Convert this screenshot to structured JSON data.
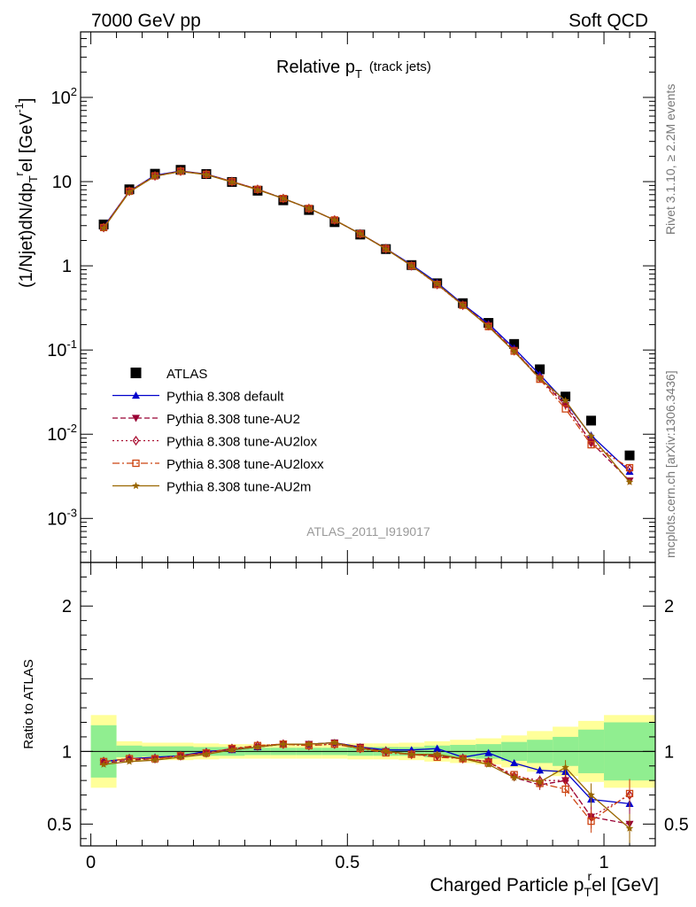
{
  "header": {
    "left": "7000 GeV pp",
    "right": "Soft QCD"
  },
  "side_labels": {
    "rivet": "Rivet 3.1.10, ≥ 2.2M events",
    "mcplots": "mcplots.cern.ch [arXiv:1306.3436]"
  },
  "analysis_id": "ATLAS_2011_I919017",
  "colors": {
    "data": "#000000",
    "default": "#0000cc",
    "au2": "#990033",
    "au2lox": "#aa1133",
    "au2loxx": "#cc4411",
    "au2m": "#996600",
    "band_inner": "#90ee90",
    "band_outer": "#ffff99"
  },
  "chart_data": [
    {
      "type": "scatter",
      "panel": "main",
      "title_main": "Relative p",
      "title_sub": "T",
      "title_suffix": "(track jets)",
      "ylabel": "(1/Njet)dN/dp",
      "ylabel_sub": "T",
      "ylabel_sup": "r",
      "ylabel_rest": "el [GeV",
      "ylabel_unit_sup": "-1",
      "ylabel_close": "]",
      "yscale": "log",
      "ylim": [
        0.0003,
        600
      ],
      "xlim": [
        -0.02,
        1.1
      ],
      "y_ticks": [
        {
          "value": 0.001,
          "base": "10",
          "exp": "-3"
        },
        {
          "value": 0.01,
          "base": "10",
          "exp": "-2"
        },
        {
          "value": 0.1,
          "base": "10",
          "exp": "-1"
        },
        {
          "value": 1,
          "base": "1",
          "exp": ""
        },
        {
          "value": 10,
          "base": "10",
          "exp": ""
        },
        {
          "value": 100,
          "base": "10",
          "exp": "2"
        }
      ],
      "x": [
        0.025,
        0.075,
        0.125,
        0.175,
        0.225,
        0.275,
        0.325,
        0.375,
        0.425,
        0.475,
        0.525,
        0.575,
        0.625,
        0.675,
        0.725,
        0.775,
        0.825,
        0.875,
        0.925,
        0.975,
        1.05
      ],
      "legend_position": "lower-left",
      "series": [
        {
          "name": "ATLAS",
          "key": "data",
          "marker": "square",
          "dash": "none",
          "values": [
            3.1,
            8.1,
            12.4,
            13.8,
            12.3,
            9.9,
            7.8,
            6.0,
            4.6,
            3.3,
            2.35,
            1.58,
            1.02,
            0.62,
            0.36,
            0.21,
            0.118,
            0.059,
            0.028,
            0.0145,
            0.0056
          ]
        },
        {
          "name": "Pythia 8.308 default",
          "key": "default",
          "marker": "triangle-up",
          "dash": "solid",
          "values": [
            2.9,
            7.7,
            11.9,
            13.4,
            12.3,
            10.0,
            8.1,
            6.3,
            4.8,
            3.5,
            2.4,
            1.6,
            1.03,
            0.63,
            0.35,
            0.205,
            0.105,
            0.051,
            0.024,
            0.0097,
            0.0036
          ]
        },
        {
          "name": "Pythia 8.308 tune-AU2",
          "key": "au2",
          "marker": "triangle-down",
          "dash": "6,3",
          "values": [
            2.85,
            7.6,
            11.6,
            13.2,
            12.2,
            10.0,
            8.1,
            6.3,
            4.8,
            3.5,
            2.4,
            1.59,
            1.0,
            0.61,
            0.345,
            0.195,
            0.1,
            0.046,
            0.022,
            0.008,
            0.0028
          ]
        },
        {
          "name": "Pythia 8.308 tune-AU2lox",
          "key": "au2lox",
          "marker": "diamond-open",
          "dash": "2,3",
          "values": [
            2.85,
            7.7,
            11.7,
            13.3,
            12.2,
            10.0,
            8.1,
            6.3,
            4.8,
            3.5,
            2.4,
            1.6,
            1.0,
            0.6,
            0.34,
            0.195,
            0.098,
            0.047,
            0.023,
            0.008,
            0.0039
          ]
        },
        {
          "name": "Pythia 8.308 tune-AU2loxx",
          "key": "au2loxx",
          "marker": "square-open",
          "dash": "8,3,2,3",
          "values": [
            2.85,
            7.7,
            11.7,
            13.3,
            12.2,
            10.0,
            8.1,
            6.3,
            4.8,
            3.5,
            2.4,
            1.6,
            1.0,
            0.6,
            0.34,
            0.19,
            0.097,
            0.045,
            0.02,
            0.0075,
            0.004
          ]
        },
        {
          "name": "Pythia 8.308 tune-AU2m",
          "key": "au2m",
          "marker": "star",
          "dash": "solid",
          "values": [
            2.8,
            7.5,
            11.6,
            13.2,
            12.1,
            9.9,
            8.0,
            6.3,
            4.8,
            3.5,
            2.4,
            1.58,
            1.0,
            0.61,
            0.34,
            0.19,
            0.096,
            0.046,
            0.025,
            0.0095,
            0.0027
          ]
        }
      ]
    },
    {
      "type": "line",
      "panel": "ratio",
      "ylabel": "Ratio to ATLAS",
      "xlabel": "Charged Particle p",
      "xlabel_sub": "T",
      "xlabel_sup": "r",
      "xlabel_rest": "el [GeV]",
      "ylim": [
        0.35,
        2.3
      ],
      "xlim": [
        -0.02,
        1.1
      ],
      "x_ticks": [
        {
          "value": 0,
          "label": "0"
        },
        {
          "value": 0.5,
          "label": "0.5"
        },
        {
          "value": 1,
          "label": "1"
        }
      ],
      "y_ticks": [
        {
          "value": 0.5,
          "label": "0.5"
        },
        {
          "value": 1,
          "label": "1"
        },
        {
          "value": 2,
          "label": "2"
        }
      ],
      "reference_line": 1,
      "bins": [
        0,
        0.05,
        0.1,
        0.15,
        0.2,
        0.25,
        0.3,
        0.35,
        0.4,
        0.45,
        0.5,
        0.55,
        0.6,
        0.65,
        0.7,
        0.75,
        0.8,
        0.85,
        0.9,
        0.95,
        1.0,
        1.1
      ],
      "band_inner": [
        0.18,
        0.04,
        0.035,
        0.035,
        0.03,
        0.03,
        0.025,
        0.025,
        0.025,
        0.025,
        0.03,
        0.03,
        0.03,
        0.04,
        0.045,
        0.05,
        0.065,
        0.08,
        0.1,
        0.15,
        0.2
      ],
      "band_outer": [
        0.25,
        0.07,
        0.06,
        0.06,
        0.055,
        0.05,
        0.05,
        0.05,
        0.05,
        0.05,
        0.055,
        0.055,
        0.06,
        0.07,
        0.08,
        0.09,
        0.11,
        0.14,
        0.17,
        0.21,
        0.25
      ],
      "x": [
        0.025,
        0.075,
        0.125,
        0.175,
        0.225,
        0.275,
        0.325,
        0.375,
        0.425,
        0.475,
        0.525,
        0.575,
        0.625,
        0.675,
        0.725,
        0.775,
        0.825,
        0.875,
        0.925,
        0.975,
        1.05
      ],
      "series": [
        {
          "name": "Pythia 8.308 default",
          "key": "default",
          "marker": "triangle-up",
          "dash": "solid",
          "values": [
            0.93,
            0.95,
            0.96,
            0.97,
            1.0,
            1.01,
            1.03,
            1.05,
            1.05,
            1.06,
            1.03,
            1.01,
            1.01,
            1.02,
            0.96,
            0.99,
            0.92,
            0.87,
            0.86,
            0.67,
            0.64
          ],
          "errors": [
            0.005,
            0.005,
            0.005,
            0.005,
            0.005,
            0.005,
            0.005,
            0.005,
            0.005,
            0.005,
            0.006,
            0.006,
            0.008,
            0.01,
            0.012,
            0.015,
            0.02,
            0.025,
            0.03,
            0.04,
            0.05
          ]
        },
        {
          "name": "Pythia 8.308 tune-AU2",
          "key": "au2",
          "marker": "triangle-down",
          "dash": "6,3",
          "values": [
            0.92,
            0.94,
            0.95,
            0.97,
            0.99,
            1.02,
            1.03,
            1.05,
            1.05,
            1.06,
            1.03,
            1.0,
            0.98,
            0.97,
            0.95,
            0.93,
            0.82,
            0.77,
            0.8,
            0.55,
            0.5
          ],
          "errors": [
            0.005,
            0.005,
            0.005,
            0.005,
            0.005,
            0.005,
            0.005,
            0.005,
            0.005,
            0.006,
            0.006,
            0.007,
            0.009,
            0.011,
            0.015,
            0.018,
            0.025,
            0.035,
            0.05,
            0.08,
            0.1
          ]
        },
        {
          "name": "Pythia 8.308 tune-AU2lox",
          "key": "au2lox",
          "marker": "diamond-open",
          "dash": "2,3",
          "values": [
            0.93,
            0.95,
            0.95,
            0.97,
            0.99,
            1.02,
            1.04,
            1.05,
            1.04,
            1.05,
            1.02,
            1.0,
            0.98,
            0.97,
            0.95,
            0.93,
            0.83,
            0.8,
            0.8,
            0.55,
            0.7
          ],
          "errors": [
            0.005,
            0.005,
            0.005,
            0.005,
            0.005,
            0.005,
            0.005,
            0.005,
            0.005,
            0.006,
            0.006,
            0.007,
            0.009,
            0.011,
            0.015,
            0.018,
            0.025,
            0.035,
            0.05,
            0.08,
            0.1
          ]
        },
        {
          "name": "Pythia 8.308 tune-AU2loxx",
          "key": "au2loxx",
          "marker": "square-open",
          "dash": "8,3,2,3",
          "values": [
            0.93,
            0.95,
            0.95,
            0.97,
            0.99,
            1.02,
            1.04,
            1.05,
            1.04,
            1.05,
            1.02,
            0.99,
            0.98,
            0.96,
            0.95,
            0.92,
            0.84,
            0.78,
            0.74,
            0.52,
            0.71
          ],
          "errors": [
            0.005,
            0.005,
            0.005,
            0.005,
            0.005,
            0.005,
            0.005,
            0.005,
            0.005,
            0.006,
            0.006,
            0.007,
            0.009,
            0.011,
            0.015,
            0.018,
            0.025,
            0.035,
            0.05,
            0.08,
            0.1
          ]
        },
        {
          "name": "Pythia 8.308 tune-AU2m",
          "key": "au2m",
          "marker": "star",
          "dash": "solid",
          "values": [
            0.91,
            0.93,
            0.94,
            0.96,
            0.98,
            1.01,
            1.03,
            1.05,
            1.05,
            1.06,
            1.02,
            1.0,
            0.98,
            0.98,
            0.95,
            0.91,
            0.82,
            0.79,
            0.89,
            0.7,
            0.47
          ],
          "errors": [
            0.005,
            0.005,
            0.005,
            0.005,
            0.005,
            0.005,
            0.005,
            0.005,
            0.005,
            0.006,
            0.006,
            0.007,
            0.009,
            0.011,
            0.015,
            0.018,
            0.025,
            0.035,
            0.05,
            0.08,
            0.1
          ]
        }
      ]
    }
  ]
}
